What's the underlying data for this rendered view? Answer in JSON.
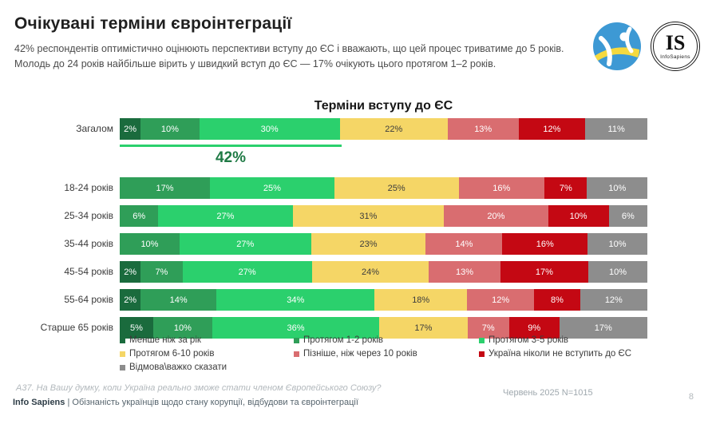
{
  "header": {
    "title": "Очікувані терміни євроінтеграції",
    "subtitle": "42% респондентів оптимістично оцінюють перспективи вступу до ЄС і вважають, що цей процес триватиме до 5 років. Молодь до 24 років найбільше вірить у швидкий вступ до ЄС — 17% очікують цього протягом 1–2 років.",
    "logo_is": {
      "monogram": "IS",
      "caption": "InfoSapiens"
    }
  },
  "chart_data": {
    "type": "bar",
    "variant": "horizontal-stacked-100pct",
    "title": "Терміни вступу до ЄС",
    "value_unit": "%",
    "grid": false,
    "legend_position": "bottom",
    "categories": [
      "Загалом",
      "18-24 років",
      "25-34 років",
      "35-44 років",
      "45-54 років",
      "55-64 років",
      "Старше 65 років"
    ],
    "series": [
      {
        "name": "Менше ніж за рік",
        "color": "#1a6b3d",
        "values": [
          2,
          0,
          0,
          0,
          2,
          2,
          5
        ]
      },
      {
        "name": "Протягом 1-2 років",
        "color": "#2f9e58",
        "values": [
          10,
          17,
          6,
          10,
          7,
          14,
          10
        ]
      },
      {
        "name": "Протягом 3-5 років",
        "color": "#2bd06d",
        "values": [
          30,
          25,
          27,
          27,
          27,
          34,
          36
        ]
      },
      {
        "name": "Протягом 6-10 років",
        "color": "#f5d666",
        "values": [
          22,
          25,
          31,
          23,
          24,
          18,
          17
        ]
      },
      {
        "name": "Пізніше, ніж через 10 років",
        "color": "#d96d70",
        "values": [
          13,
          16,
          20,
          14,
          13,
          12,
          7
        ]
      },
      {
        "name": "Україна ніколи не вступить до ЄС",
        "color": "#c40813",
        "values": [
          12,
          7,
          10,
          16,
          17,
          8,
          9
        ]
      },
      {
        "name": "Відмова\\важко сказати",
        "color": "#8d8d8d",
        "values": [
          11,
          10,
          6,
          10,
          10,
          12,
          17
        ]
      }
    ],
    "dark_text_series_index": 3,
    "annotation": {
      "label": "42%",
      "span_pct": 42,
      "line_color": "#2bd06d",
      "text_color": "#1f7a45"
    }
  },
  "footer": {
    "question": "А37. На Вашу думку, коли Україна реально зможе стати членом Європейського Союзу?",
    "brand": "Info Sapiens",
    "separator": " | ",
    "report": "Обізнаність українців щодо стану корупції, відбудови та євроінтеграції",
    "survey_info": "Червень 2025 N=1015",
    "page_number": "8"
  }
}
